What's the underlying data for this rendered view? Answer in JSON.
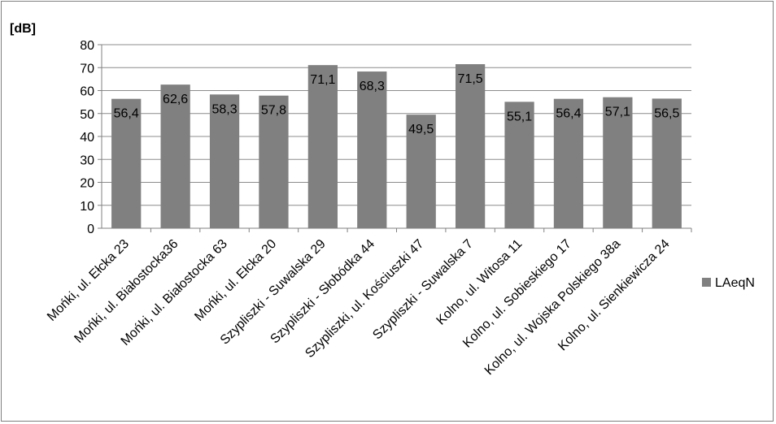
{
  "chart_data": {
    "type": "bar",
    "ylabel": "[dB]",
    "ylim": [
      0,
      80
    ],
    "ytick_step": 10,
    "grid": true,
    "legend_position": "right",
    "bar_color": "#808080",
    "categories": [
      "Mońki, ul. Ełcka 23",
      "Mońki, ul. Białostocka36",
      "Mońki, ul. Białostocka 63",
      "Mońki, ul. Ełcka 20",
      "Szypliszki - Suwalska 29",
      "Szypliszki - Słobódka 44",
      "Szypliszki, ul. Kościuszki 47",
      "Szypliszki - Suwalska 7",
      "Kolno, ul. Witosa 11",
      "Kolno, ul. Sobieskiego 17",
      "Kolno, ul. Wojska Polskiego 38a",
      "Kolno, ul. Sienkiewicza 24"
    ],
    "series": [
      {
        "name": "LAeqN",
        "values": [
          56.4,
          62.6,
          58.3,
          57.8,
          71.1,
          68.3,
          49.5,
          71.5,
          55.1,
          56.4,
          57.1,
          56.5
        ],
        "labels": [
          "56,4",
          "62,6",
          "58,3",
          "57,8",
          "71,1",
          "68,3",
          "49,5",
          "71,5",
          "55,1",
          "56,4",
          "57,1",
          "56,5"
        ]
      }
    ]
  }
}
